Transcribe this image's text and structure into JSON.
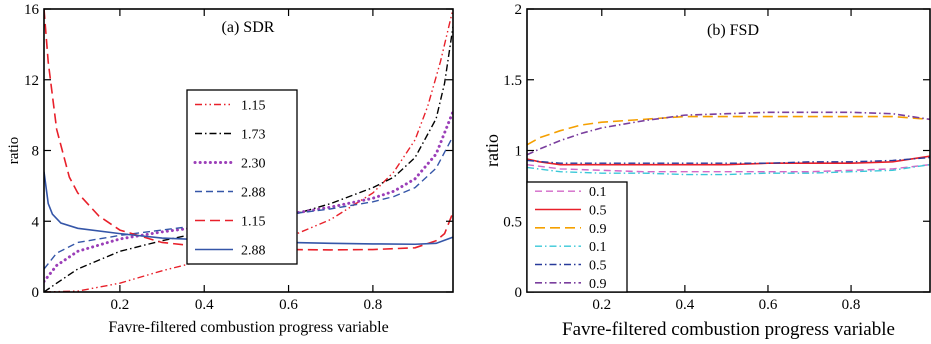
{
  "chart_data": [
    {
      "type": "line",
      "title": "(a) SDR",
      "xlabel": "Favre-filtered combustion progress variable",
      "ylabel": "ratio",
      "xlim": [
        0.02,
        0.99
      ],
      "ylim": [
        0,
        16
      ],
      "xticks": [
        0.2,
        0.4,
        0.6,
        0.8
      ],
      "yticks": [
        0,
        4,
        8,
        12,
        16
      ],
      "xtick_labels": [
        "0.2",
        "0.4",
        "0.6",
        "0.8"
      ],
      "ytick_labels": [
        "0",
        "4",
        "8",
        "12",
        "16"
      ],
      "grid": false,
      "legend_position": "center-right",
      "series": [
        {
          "name": "1.15",
          "color": "#e8202a",
          "dash": "dashdotdot",
          "width": 1.4,
          "points": [
            [
              0.02,
              0
            ],
            [
              0.1,
              0.05
            ],
            [
              0.2,
              0.5
            ],
            [
              0.3,
              1.2
            ],
            [
              0.4,
              1.8
            ],
            [
              0.5,
              2.4
            ],
            [
              0.6,
              3.1
            ],
            [
              0.7,
              4.1
            ],
            [
              0.8,
              5.6
            ],
            [
              0.85,
              6.8
            ],
            [
              0.9,
              8.6
            ],
            [
              0.93,
              10.5
            ],
            [
              0.96,
              13.0
            ],
            [
              0.99,
              16.0
            ]
          ]
        },
        {
          "name": "1.73",
          "color": "#000000",
          "dash": "dashdot",
          "width": 1.4,
          "points": [
            [
              0.02,
              0
            ],
            [
              0.05,
              0.5
            ],
            [
              0.1,
              1.3
            ],
            [
              0.2,
              2.3
            ],
            [
              0.3,
              2.9
            ],
            [
              0.4,
              3.4
            ],
            [
              0.5,
              3.8
            ],
            [
              0.6,
              4.3
            ],
            [
              0.7,
              5.0
            ],
            [
              0.8,
              5.9
            ],
            [
              0.85,
              6.5
            ],
            [
              0.9,
              7.6
            ],
            [
              0.95,
              9.8
            ],
            [
              0.97,
              11.8
            ],
            [
              0.99,
              15.0
            ]
          ]
        },
        {
          "name": "2.30",
          "color": "#9b3fb8",
          "dash": "dotted",
          "width": 3.0,
          "points": [
            [
              0.02,
              0.6
            ],
            [
              0.05,
              1.5
            ],
            [
              0.1,
              2.3
            ],
            [
              0.2,
              3.0
            ],
            [
              0.3,
              3.4
            ],
            [
              0.4,
              3.7
            ],
            [
              0.5,
              4.0
            ],
            [
              0.6,
              4.4
            ],
            [
              0.7,
              4.8
            ],
            [
              0.8,
              5.3
            ],
            [
              0.85,
              5.7
            ],
            [
              0.9,
              6.4
            ],
            [
              0.95,
              7.8
            ],
            [
              0.99,
              10.2
            ]
          ]
        },
        {
          "name": "2.88",
          "color": "#3556a8",
          "dash": "dashed",
          "width": 1.4,
          "points": [
            [
              0.02,
              1.3
            ],
            [
              0.05,
              2.2
            ],
            [
              0.1,
              2.8
            ],
            [
              0.2,
              3.2
            ],
            [
              0.3,
              3.5
            ],
            [
              0.4,
              3.8
            ],
            [
              0.5,
              4.1
            ],
            [
              0.6,
              4.4
            ],
            [
              0.7,
              4.7
            ],
            [
              0.8,
              5.1
            ],
            [
              0.85,
              5.4
            ],
            [
              0.9,
              5.9
            ],
            [
              0.95,
              7.0
            ],
            [
              0.99,
              8.8
            ]
          ]
        },
        {
          "name": "1.15",
          "color": "#e8202a",
          "dash": "longdash",
          "width": 1.6,
          "points": [
            [
              0.02,
              16
            ],
            [
              0.03,
              13
            ],
            [
              0.05,
              9.2
            ],
            [
              0.08,
              6.5
            ],
            [
              0.1,
              5.6
            ],
            [
              0.15,
              4.3
            ],
            [
              0.2,
              3.5
            ],
            [
              0.3,
              2.8
            ],
            [
              0.4,
              2.55
            ],
            [
              0.5,
              2.45
            ],
            [
              0.6,
              2.4
            ],
            [
              0.7,
              2.38
            ],
            [
              0.8,
              2.4
            ],
            [
              0.9,
              2.5
            ],
            [
              0.95,
              2.9
            ],
            [
              0.97,
              3.3
            ],
            [
              0.99,
              4.5
            ]
          ]
        },
        {
          "name": "2.88",
          "color": "#3556a8",
          "dash": "solid",
          "width": 1.6,
          "points": [
            [
              0.02,
              6.8
            ],
            [
              0.025,
              5.9
            ],
            [
              0.03,
              5.0
            ],
            [
              0.04,
              4.4
            ],
            [
              0.06,
              3.9
            ],
            [
              0.1,
              3.6
            ],
            [
              0.2,
              3.3
            ],
            [
              0.3,
              3.05
            ],
            [
              0.4,
              2.95
            ],
            [
              0.5,
              2.85
            ],
            [
              0.6,
              2.8
            ],
            [
              0.7,
              2.75
            ],
            [
              0.8,
              2.72
            ],
            [
              0.9,
              2.7
            ],
            [
              0.95,
              2.75
            ],
            [
              0.99,
              3.1
            ]
          ]
        }
      ]
    },
    {
      "type": "line",
      "title": "(b) FSD",
      "xlabel": "Favre-filtered combustion progress variable",
      "ylabel": "ratio",
      "xlim": [
        0.02,
        0.99
      ],
      "ylim": [
        0,
        2
      ],
      "xticks": [
        0.2,
        0.4,
        0.6,
        0.8
      ],
      "yticks": [
        0,
        0.5,
        1,
        1.5,
        2
      ],
      "xtick_labels": [
        "0.2",
        "0.4",
        "0.6",
        "0.8"
      ],
      "ytick_labels": [
        "0",
        "0.5",
        "1",
        "1.5",
        "2"
      ],
      "grid": false,
      "legend_position": "lower-left",
      "series": [
        {
          "name": "0.1",
          "color": "#d268c8",
          "dash": "dashed",
          "width": 1.4,
          "points": [
            [
              0.02,
              0.9
            ],
            [
              0.1,
              0.87
            ],
            [
              0.2,
              0.86
            ],
            [
              0.3,
              0.85
            ],
            [
              0.4,
              0.85
            ],
            [
              0.5,
              0.85
            ],
            [
              0.6,
              0.85
            ],
            [
              0.7,
              0.85
            ],
            [
              0.8,
              0.86
            ],
            [
              0.9,
              0.87
            ],
            [
              0.99,
              0.9
            ]
          ]
        },
        {
          "name": "0.5",
          "color": "#e8202a",
          "dash": "solid",
          "width": 1.6,
          "points": [
            [
              0.02,
              0.94
            ],
            [
              0.05,
              0.92
            ],
            [
              0.1,
              0.9
            ],
            [
              0.2,
              0.9
            ],
            [
              0.3,
              0.9
            ],
            [
              0.4,
              0.9
            ],
            [
              0.5,
              0.9
            ],
            [
              0.6,
              0.91
            ],
            [
              0.7,
              0.91
            ],
            [
              0.8,
              0.91
            ],
            [
              0.9,
              0.92
            ],
            [
              0.99,
              0.96
            ]
          ]
        },
        {
          "name": "0.9",
          "color": "#f5a000",
          "dash": "longdash",
          "width": 1.6,
          "points": [
            [
              0.02,
              1.04
            ],
            [
              0.05,
              1.09
            ],
            [
              0.1,
              1.14
            ],
            [
              0.15,
              1.18
            ],
            [
              0.2,
              1.2
            ],
            [
              0.3,
              1.22
            ],
            [
              0.4,
              1.24
            ],
            [
              0.5,
              1.24
            ],
            [
              0.6,
              1.24
            ],
            [
              0.7,
              1.24
            ],
            [
              0.8,
              1.24
            ],
            [
              0.9,
              1.24
            ],
            [
              0.99,
              1.22
            ]
          ]
        },
        {
          "name": "0.1",
          "color": "#39c8d8",
          "dash": "dashdot",
          "width": 1.4,
          "points": [
            [
              0.02,
              0.88
            ],
            [
              0.1,
              0.85
            ],
            [
              0.2,
              0.84
            ],
            [
              0.3,
              0.84
            ],
            [
              0.4,
              0.83
            ],
            [
              0.5,
              0.83
            ],
            [
              0.6,
              0.84
            ],
            [
              0.7,
              0.84
            ],
            [
              0.8,
              0.85
            ],
            [
              0.9,
              0.86
            ],
            [
              0.99,
              0.9
            ]
          ]
        },
        {
          "name": "0.5",
          "color": "#283a9a",
          "dash": "dashdot",
          "width": 1.4,
          "points": [
            [
              0.02,
              0.93
            ],
            [
              0.1,
              0.91
            ],
            [
              0.2,
              0.91
            ],
            [
              0.3,
              0.91
            ],
            [
              0.4,
              0.91
            ],
            [
              0.5,
              0.91
            ],
            [
              0.6,
              0.91
            ],
            [
              0.7,
              0.92
            ],
            [
              0.8,
              0.92
            ],
            [
              0.9,
              0.93
            ],
            [
              0.99,
              0.95
            ]
          ]
        },
        {
          "name": "0.9",
          "color": "#7a3f9e",
          "dash": "dashdot",
          "width": 1.6,
          "points": [
            [
              0.02,
              0.97
            ],
            [
              0.05,
              1.01
            ],
            [
              0.1,
              1.07
            ],
            [
              0.15,
              1.12
            ],
            [
              0.2,
              1.16
            ],
            [
              0.3,
              1.21
            ],
            [
              0.4,
              1.25
            ],
            [
              0.5,
              1.26
            ],
            [
              0.6,
              1.27
            ],
            [
              0.7,
              1.27
            ],
            [
              0.8,
              1.27
            ],
            [
              0.9,
              1.26
            ],
            [
              0.99,
              1.22
            ]
          ]
        }
      ]
    }
  ]
}
